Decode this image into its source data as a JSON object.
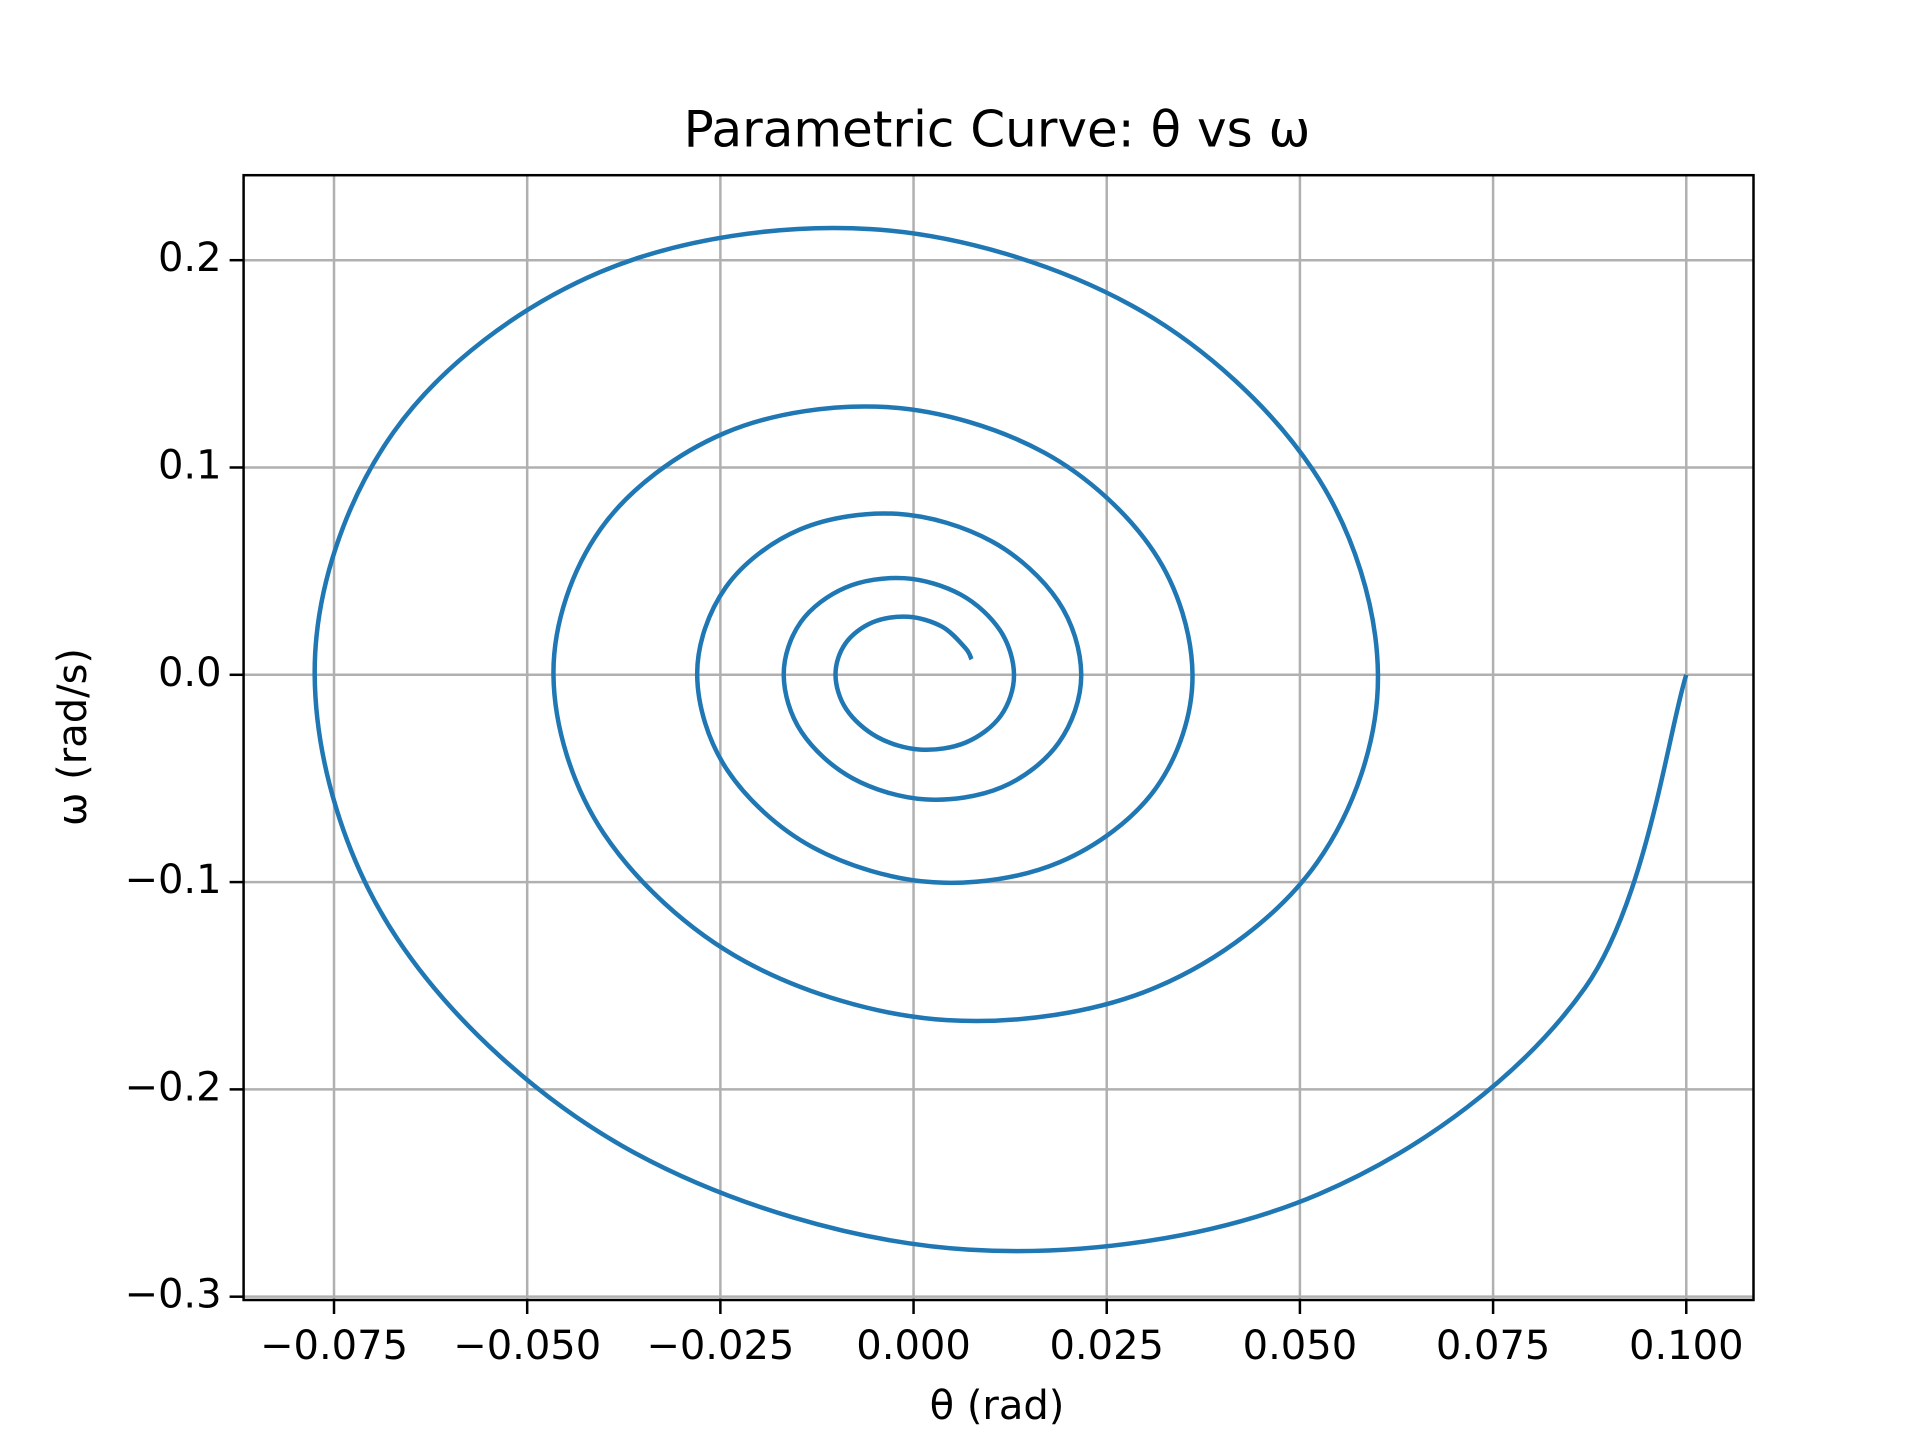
{
  "chart_data": {
    "type": "line",
    "title": "Parametric Curve: θ vs ω",
    "xlabel": "θ (rad)",
    "ylabel": "ω (rad/s)",
    "color": "#1f77b4",
    "grid": true,
    "x": [
      0.1,
      0.0869,
      0.0524,
      0.0071,
      -0.0363,
      -0.0668,
      -0.0775,
      -0.0673,
      -0.0406,
      -0.0055,
      0.0281,
      0.0517,
      0.0601,
      0.0522,
      0.0315,
      0.0043,
      -0.0218,
      -0.0401,
      -0.0466,
      -0.0405,
      -0.0244,
      -0.0033,
      0.0169,
      0.0311,
      0.0361,
      0.0314,
      0.0189,
      0.0026,
      -0.0131,
      -0.0241,
      -0.028,
      -0.0243,
      -0.0147,
      -0.002,
      0.0101,
      0.0187,
      0.0217,
      0.0188,
      0.0114,
      0.0015,
      -0.0079,
      -0.0145,
      -0.0168,
      -0.0146,
      -0.0088,
      -0.0012,
      0.0061,
      0.0112,
      0.013,
      0.0113,
      0.0068,
      0.0009,
      -0.0047,
      -0.0087,
      -0.0101,
      -0.0088,
      -0.0053,
      -0.0007,
      0.0037,
      0.0067,
      0.0075
    ],
    "y": [
      0,
      -0.151,
      -0.2506,
      -0.2773,
      -0.2302,
      -0.1274,
      0,
      0.117,
      0.1942,
      0.215,
      0.1784,
      0.0987,
      0,
      -0.0907,
      -0.1506,
      -0.1666,
      -0.1383,
      -0.0765,
      0,
      0.0703,
      0.1167,
      0.1291,
      0.1072,
      0.0593,
      0,
      -0.0545,
      -0.0904,
      -0.1001,
      -0.0831,
      -0.046,
      0,
      0.0422,
      0.0701,
      0.0776,
      0.0644,
      0.0356,
      0,
      -0.0327,
      -0.0543,
      -0.0601,
      -0.0499,
      -0.0276,
      0,
      0.0254,
      0.0421,
      0.0466,
      0.0387,
      0.0214,
      0,
      -0.0197,
      -0.0326,
      -0.0361,
      -0.03,
      -0.0166,
      0,
      0.0152,
      0.0253,
      0.028,
      0.0232,
      0.0129,
      0.0075
    ],
    "xlim": [
      -0.0867,
      0.1087
    ],
    "ylim": [
      -0.3016,
      0.241
    ],
    "xticks": [
      {
        "value": -0.075,
        "label": "−0.075"
      },
      {
        "value": -0.05,
        "label": "−0.050"
      },
      {
        "value": -0.025,
        "label": "−0.025"
      },
      {
        "value": 0,
        "label": "0.000"
      },
      {
        "value": 0.025,
        "label": "0.025"
      },
      {
        "value": 0.05,
        "label": "0.050"
      },
      {
        "value": 0.075,
        "label": "0.075"
      },
      {
        "value": 0.1,
        "label": "0.100"
      }
    ],
    "yticks": [
      {
        "value": -0.3,
        "label": "−0.3"
      },
      {
        "value": -0.2,
        "label": "−0.2"
      },
      {
        "value": -0.1,
        "label": "−0.1"
      },
      {
        "value": 0,
        "label": "0.0"
      },
      0.1,
      0.2
    ]
  }
}
